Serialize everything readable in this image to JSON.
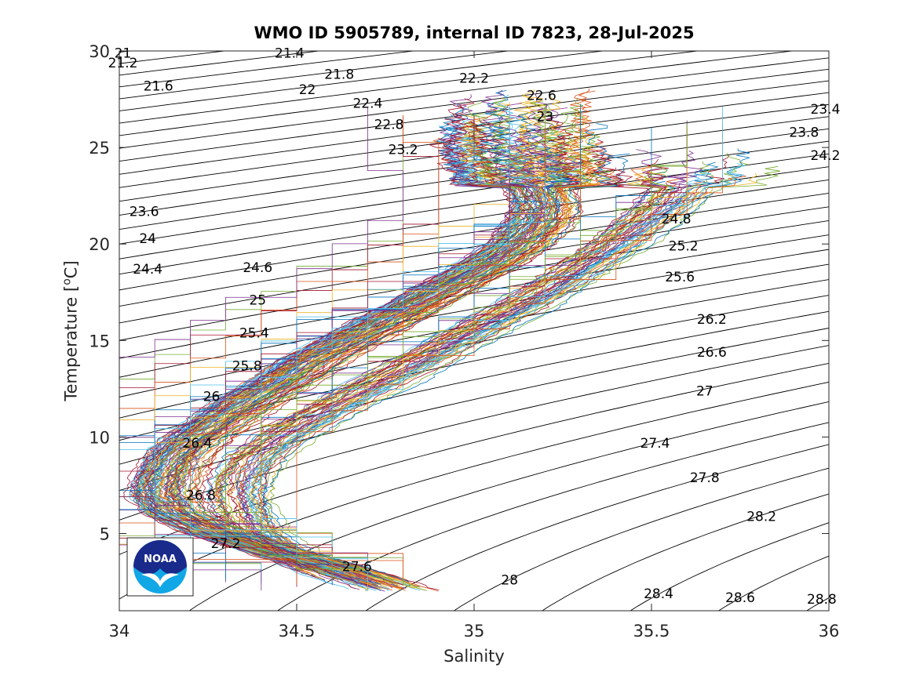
{
  "chart_data": {
    "type": "line",
    "title": "WMO ID 5905789, internal ID 7823, 28-Jul-2025",
    "xlabel": "Salinity",
    "ylabel_prefix": "Temperature [",
    "ylabel_sup": "o",
    "ylabel_suffix": "C]",
    "xlim": [
      34,
      36
    ],
    "ylim": [
      1,
      30
    ],
    "x_ticks": [
      34,
      34.5,
      35,
      35.5,
      36
    ],
    "x_tick_labels": [
      "34",
      "34.5",
      "35",
      "35.5",
      "36"
    ],
    "y_ticks": [
      5,
      10,
      15,
      20,
      25,
      30
    ],
    "y_tick_labels": [
      "5",
      "10",
      "15",
      "20",
      "25",
      "30"
    ],
    "grid": false,
    "legend": "none",
    "density_contours": {
      "levels": [
        21,
        21.2,
        21.4,
        21.6,
        21.8,
        22,
        22.2,
        22.4,
        22.6,
        22.8,
        23,
        23.2,
        23.4,
        23.6,
        23.8,
        24,
        24.2,
        24.4,
        24.6,
        24.8,
        25,
        25.2,
        25.4,
        25.6,
        25.8,
        26,
        26.2,
        26.4,
        26.6,
        26.8,
        27,
        27.2,
        27.4,
        27.6,
        27.8,
        28,
        28.2,
        28.4,
        28.6,
        28.8
      ],
      "labels": [
        {
          "text": "21",
          "s": 34.01,
          "t": 29.9
        },
        {
          "text": "21.2",
          "s": 34.01,
          "t": 29.4
        },
        {
          "text": "21.4",
          "s": 34.48,
          "t": 29.9
        },
        {
          "text": "21.6",
          "s": 34.11,
          "t": 28.2
        },
        {
          "text": "21.8",
          "s": 34.62,
          "t": 28.8
        },
        {
          "text": "22",
          "s": 34.53,
          "t": 28.0
        },
        {
          "text": "22.2",
          "s": 35.0,
          "t": 28.6
        },
        {
          "text": "22.4",
          "s": 34.7,
          "t": 27.3
        },
        {
          "text": "22.6",
          "s": 35.19,
          "t": 27.7
        },
        {
          "text": "22.8",
          "s": 34.76,
          "t": 26.2
        },
        {
          "text": "23",
          "s": 35.2,
          "t": 26.6
        },
        {
          "text": "23.2",
          "s": 34.8,
          "t": 24.9
        },
        {
          "text": "23.4",
          "s": 35.99,
          "t": 27.0
        },
        {
          "text": "23.6",
          "s": 34.07,
          "t": 21.7
        },
        {
          "text": "23.8",
          "s": 35.93,
          "t": 25.8
        },
        {
          "text": "24",
          "s": 34.08,
          "t": 20.3
        },
        {
          "text": "24.2",
          "s": 35.99,
          "t": 24.6
        },
        {
          "text": "24.4",
          "s": 34.08,
          "t": 18.7
        },
        {
          "text": "24.6",
          "s": 34.39,
          "t": 18.8
        },
        {
          "text": "24.8",
          "s": 35.57,
          "t": 21.3
        },
        {
          "text": "25",
          "s": 34.39,
          "t": 17.1
        },
        {
          "text": "25.2",
          "s": 35.59,
          "t": 19.9
        },
        {
          "text": "25.4",
          "s": 34.38,
          "t": 15.4
        },
        {
          "text": "25.6",
          "s": 35.58,
          "t": 18.3
        },
        {
          "text": "25.8",
          "s": 34.36,
          "t": 13.7
        },
        {
          "text": "26",
          "s": 34.26,
          "t": 12.1
        },
        {
          "text": "26.2",
          "s": 35.67,
          "t": 16.1
        },
        {
          "text": "26.4",
          "s": 34.22,
          "t": 9.7
        },
        {
          "text": "26.6",
          "s": 35.67,
          "t": 14.4
        },
        {
          "text": "26.8",
          "s": 34.23,
          "t": 7.0
        },
        {
          "text": "27",
          "s": 35.65,
          "t": 12.4
        },
        {
          "text": "27.2",
          "s": 34.3,
          "t": 4.5
        },
        {
          "text": "27.4",
          "s": 35.51,
          "t": 9.7
        },
        {
          "text": "27.6",
          "s": 34.67,
          "t": 3.3
        },
        {
          "text": "27.8",
          "s": 35.65,
          "t": 7.9
        },
        {
          "text": "28",
          "s": 35.1,
          "t": 2.6
        },
        {
          "text": "28.2",
          "s": 35.81,
          "t": 5.9
        },
        {
          "text": "28.4",
          "s": 35.52,
          "t": 1.9
        },
        {
          "text": "28.6",
          "s": 35.75,
          "t": 1.7
        },
        {
          "text": "28.8",
          "s": 35.98,
          "t": 1.6
        }
      ]
    },
    "profile_envelope_median": [
      {
        "t": 2.0,
        "s": 34.82
      },
      {
        "t": 3.0,
        "s": 34.65
      },
      {
        "t": 4.0,
        "s": 34.45
      },
      {
        "t": 5.0,
        "s": 34.28
      },
      {
        "t": 6.0,
        "s": 34.16
      },
      {
        "t": 7.0,
        "s": 34.12
      },
      {
        "t": 8.0,
        "s": 34.13
      },
      {
        "t": 9.0,
        "s": 34.16
      },
      {
        "t": 10.0,
        "s": 34.22
      },
      {
        "t": 11.0,
        "s": 34.3
      },
      {
        "t": 12.0,
        "s": 34.38
      },
      {
        "t": 13.0,
        "s": 34.47
      },
      {
        "t": 14.0,
        "s": 34.55
      },
      {
        "t": 15.0,
        "s": 34.65
      },
      {
        "t": 16.0,
        "s": 34.75
      },
      {
        "t": 17.0,
        "s": 34.85
      },
      {
        "t": 18.0,
        "s": 34.95
      },
      {
        "t": 19.0,
        "s": 35.05
      },
      {
        "t": 20.0,
        "s": 35.13
      },
      {
        "t": 21.0,
        "s": 35.18
      },
      {
        "t": 22.0,
        "s": 35.2
      },
      {
        "t": 23.0,
        "s": 35.18
      },
      {
        "t": 24.0,
        "s": 35.15
      },
      {
        "t": 25.0,
        "s": 35.13
      },
      {
        "t": 26.0,
        "s": 35.13
      },
      {
        "t": 27.0,
        "s": 35.13
      },
      {
        "t": 28.0,
        "s": 35.15
      }
    ],
    "profile_envelope_secondary": [
      {
        "t": 2.0,
        "s": 34.75
      },
      {
        "t": 3.0,
        "s": 34.6
      },
      {
        "t": 4.0,
        "s": 34.48
      },
      {
        "t": 5.0,
        "s": 34.4
      },
      {
        "t": 6.0,
        "s": 34.37
      },
      {
        "t": 7.0,
        "s": 34.35
      },
      {
        "t": 8.0,
        "s": 34.36
      },
      {
        "t": 9.0,
        "s": 34.4
      },
      {
        "t": 10.0,
        "s": 34.47
      },
      {
        "t": 11.0,
        "s": 34.56
      },
      {
        "t": 12.0,
        "s": 34.66
      },
      {
        "t": 13.0,
        "s": 34.76
      },
      {
        "t": 14.0,
        "s": 34.86
      },
      {
        "t": 15.0,
        "s": 34.96
      },
      {
        "t": 16.0,
        "s": 35.06
      },
      {
        "t": 17.0,
        "s": 35.16
      },
      {
        "t": 18.0,
        "s": 35.25
      },
      {
        "t": 19.0,
        "s": 35.33
      },
      {
        "t": 20.0,
        "s": 35.41
      },
      {
        "t": 21.0,
        "s": 35.48
      },
      {
        "t": 22.0,
        "s": 35.55
      },
      {
        "t": 23.0,
        "s": 35.6
      },
      {
        "t": 24.0,
        "s": 35.63
      }
    ],
    "profile_count": 140,
    "logo": "NOAA",
    "logo_colors": {
      "dark": "#1a2a8a",
      "light": "#11a7e6"
    },
    "series_colors": [
      "#0072bd",
      "#d95319",
      "#edb120",
      "#7e2f8e",
      "#77ac30",
      "#4dbeee",
      "#a2142f"
    ]
  }
}
